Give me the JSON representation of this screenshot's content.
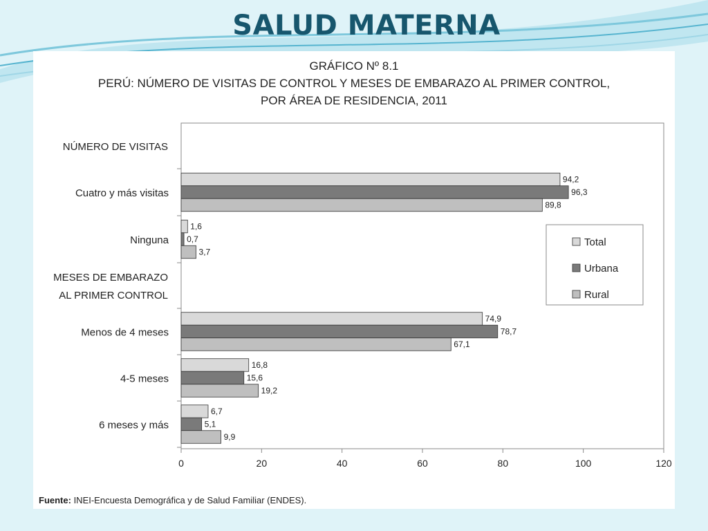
{
  "slide": {
    "title": "SALUD MATERNA"
  },
  "chart_header": {
    "line1": "GRÁFICO Nº 8.1",
    "line2": "PERÚ: NÚMERO DE VISITAS DE CONTROL Y MESES DE EMBARAZO AL PRIMER CONTROL,",
    "line3": "POR ÁREA DE RESIDENCIA, 2011"
  },
  "source": {
    "label": "Fuente:",
    "text": " INEI-Encuesta Demográfica y de Salud Familiar (ENDES)."
  },
  "chart_data": {
    "type": "bar",
    "orientation": "horizontal",
    "xlim": [
      0,
      120
    ],
    "xticks": [
      0,
      20,
      40,
      60,
      80,
      100,
      120
    ],
    "grid": false,
    "legend_position": "right",
    "rows": [
      {
        "kind": "section",
        "label": [
          "NÚMERO DE VISITAS"
        ]
      },
      {
        "kind": "group",
        "label": "Cuatro y más visitas",
        "values": [
          94.2,
          96.3,
          89.8
        ],
        "labels": [
          "94,2",
          "96,3",
          "89,8"
        ]
      },
      {
        "kind": "group",
        "label": "Ninguna",
        "values": [
          1.6,
          0.7,
          3.7
        ],
        "labels": [
          "1,6",
          "0,7",
          "3,7"
        ]
      },
      {
        "kind": "section",
        "label": [
          "MESES DE EMBARAZO",
          "AL PRIMER CONTROL"
        ]
      },
      {
        "kind": "group",
        "label": "Menos de 4 meses",
        "values": [
          74.9,
          78.7,
          67.1
        ],
        "labels": [
          "74,9",
          "78,7",
          "67,1"
        ]
      },
      {
        "kind": "group",
        "label": "4-5 meses",
        "values": [
          16.8,
          15.6,
          19.2
        ],
        "labels": [
          "16,8",
          "15,6",
          "19,2"
        ]
      },
      {
        "kind": "group",
        "label": "6 meses y más",
        "values": [
          6.7,
          5.1,
          9.9
        ],
        "labels": [
          "6,7",
          "5,1",
          "9,9"
        ]
      }
    ],
    "series": [
      {
        "name": "Total",
        "color": "#d9d9d9"
      },
      {
        "name": "Urbana",
        "color": "#7a7a7a"
      },
      {
        "name": "Rural",
        "color": "#bfbfbf"
      }
    ]
  }
}
